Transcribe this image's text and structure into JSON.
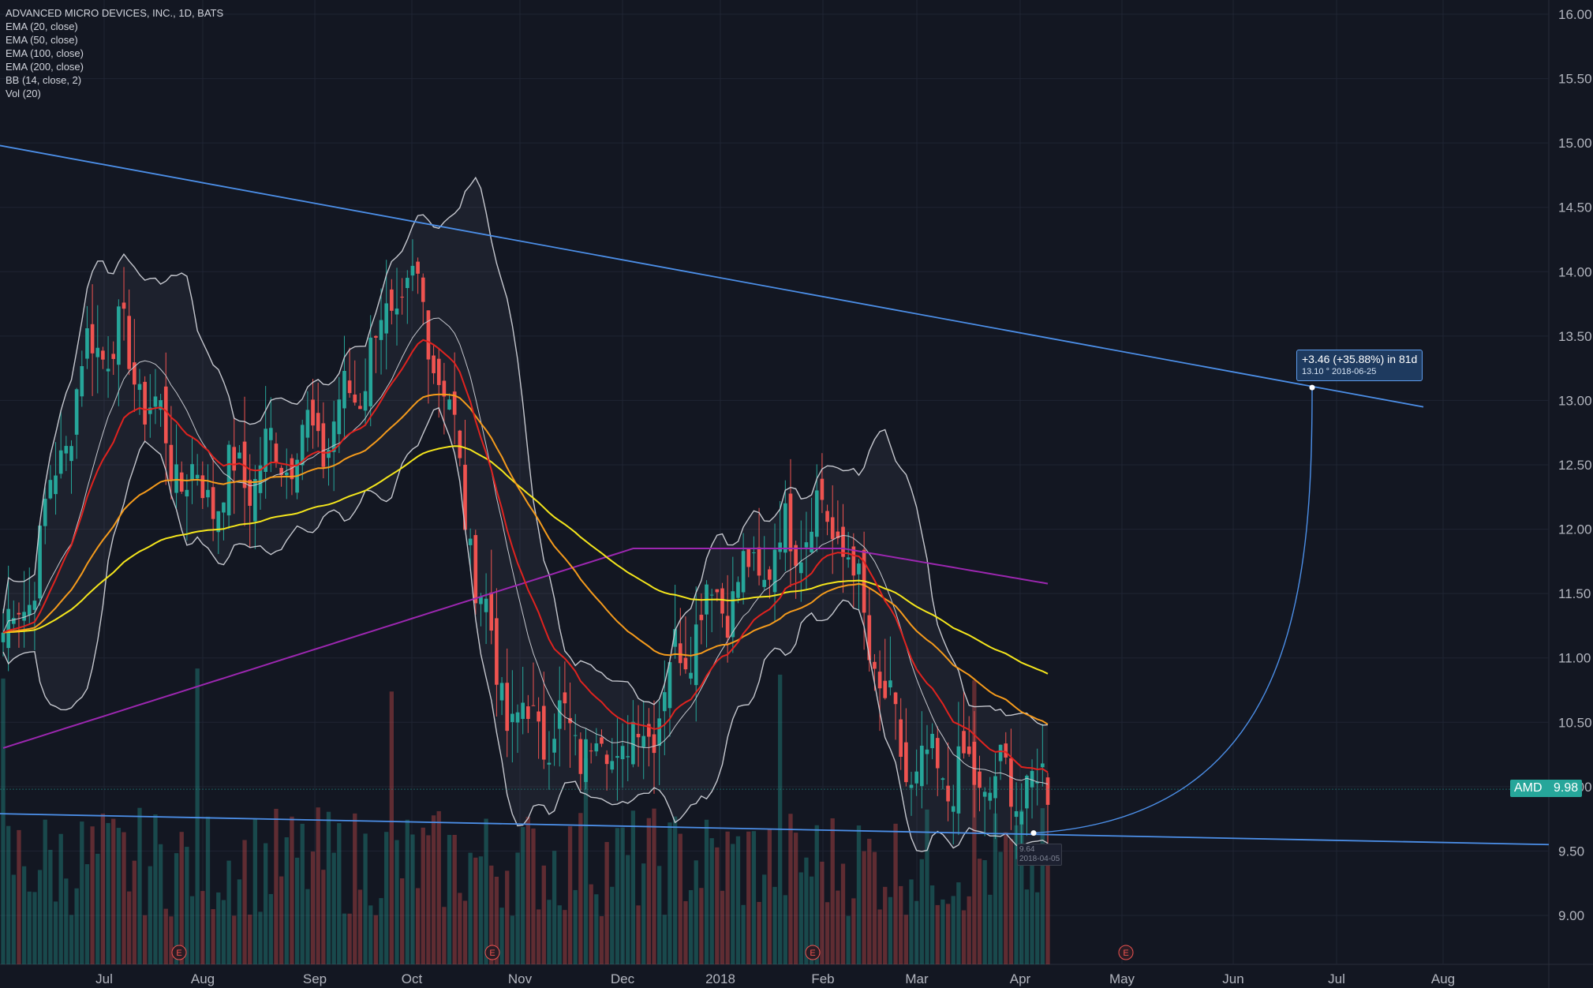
{
  "legend": {
    "title": "ADVANCED MICRO DEVICES, INC., 1D, BATS",
    "indicators": [
      "EMA (20, close)",
      "EMA (50, close)",
      "EMA (100, close)",
      "EMA (200, close)",
      "BB (14, close, 2)",
      "Vol (20)"
    ]
  },
  "badge": {
    "ticker": "AMD",
    "price": "9.98"
  },
  "measure": {
    "line1": "+3.46 (+35.88%) in 81d",
    "line2": "13.10  °  2018-06-25"
  },
  "date_tag": {
    "line1": "9.64",
    "line2": "2018-04-05"
  },
  "colors": {
    "background": "#131722",
    "up": "#26a69a",
    "down": "#ef5350",
    "ema20": "#e0231f",
    "ema50": "#f59b1c",
    "ema100": "#f5e61c",
    "ema200": "#9c27b0",
    "bollinger": "#c6c8cf",
    "trendline": "#4c8fe8",
    "badge": "#26a69a"
  },
  "chart_data": {
    "type": "candlestick",
    "title": "ADVANCED MICRO DEVICES, INC., 1D, BATS",
    "ylim": [
      8.7,
      16.1
    ],
    "y_ticks": [
      "9.00",
      "9.50",
      "10.00",
      "10.50",
      "11.00",
      "11.50",
      "12.00",
      "12.50",
      "13.00",
      "13.50",
      "14.00",
      "14.50",
      "15.00",
      "15.50",
      "16.00"
    ],
    "x_ticks": [
      "Jul",
      "Aug",
      "Sep",
      "Oct",
      "Nov",
      "Dec",
      "2018",
      "Feb",
      "Mar",
      "Apr",
      "May",
      "Jun",
      "Jul",
      "Aug"
    ],
    "earnings_markers": [
      "E",
      "E",
      "E",
      "E"
    ],
    "price_closes_monthly": [
      {
        "month": "Jun",
        "close": 11.2
      },
      {
        "month": "Jul",
        "close": 13.5
      },
      {
        "month": "Aug",
        "close": 12.3
      },
      {
        "month": "Sep",
        "close": 12.7
      },
      {
        "month": "Oct",
        "close": 13.8
      },
      {
        "month": "Nov",
        "close": 10.5
      },
      {
        "month": "Dec",
        "close": 10.3
      },
      {
        "month": "2018",
        "close": 11.5
      },
      {
        "month": "Feb",
        "close": 12.1
      },
      {
        "month": "Mar",
        "close": 10.1
      },
      {
        "month": "Apr",
        "close": 9.98
      }
    ],
    "series": [
      {
        "name": "EMA (20, close)"
      },
      {
        "name": "EMA (50, close)"
      },
      {
        "name": "EMA (100, close)"
      },
      {
        "name": "EMA (200, close)"
      },
      {
        "name": "BB (14, close, 2)"
      },
      {
        "name": "Vol (20)"
      }
    ],
    "last_price": 9.98,
    "measurement": {
      "change": 3.46,
      "percent": 35.88,
      "days": 81,
      "target_price": 13.1,
      "target_date": "2018-06-25"
    },
    "grid": true,
    "legend": "top-left"
  }
}
